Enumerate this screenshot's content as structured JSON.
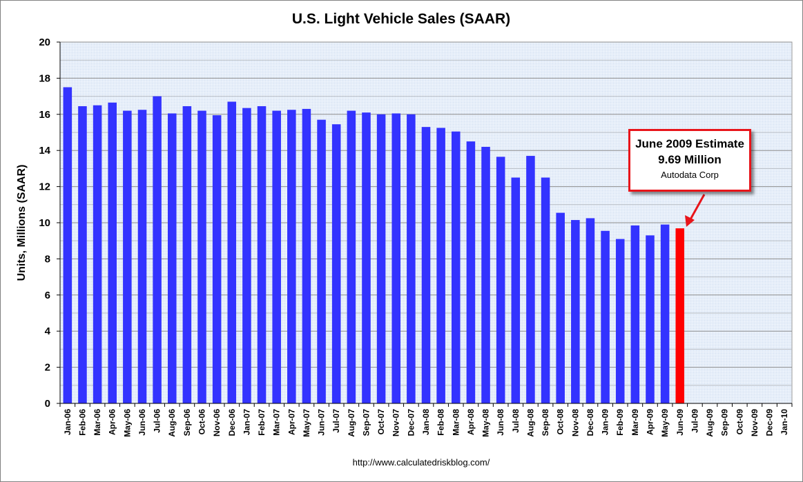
{
  "chart_data": {
    "type": "bar",
    "title": "U.S. Light Vehicle Sales (SAAR)",
    "xlabel": "",
    "ylabel": "Units, Millions (SAAR)",
    "ylim": [
      0,
      20
    ],
    "yticks": [
      0,
      2,
      4,
      6,
      8,
      10,
      12,
      14,
      16,
      18,
      20
    ],
    "grid": true,
    "categories": [
      "Jan-06",
      "Feb-06",
      "Mar-06",
      "Apr-06",
      "May-06",
      "Jun-06",
      "Jul-06",
      "Aug-06",
      "Sep-06",
      "Oct-06",
      "Nov-06",
      "Dec-06",
      "Jan-07",
      "Feb-07",
      "Mar-07",
      "Apr-07",
      "May-07",
      "Jun-07",
      "Jul-07",
      "Aug-07",
      "Sep-07",
      "Oct-07",
      "Nov-07",
      "Dec-07",
      "Jan-08",
      "Feb-08",
      "Mar-08",
      "Apr-08",
      "May-08",
      "Jun-08",
      "Jul-08",
      "Aug-08",
      "Sep-08",
      "Oct-08",
      "Nov-08",
      "Dec-08",
      "Jan-09",
      "Feb-09",
      "Mar-09",
      "Apr-09",
      "May-09",
      "Jun-09",
      "Jul-09",
      "Aug-09",
      "Sep-09",
      "Oct-09",
      "Nov-09",
      "Dec-09",
      "Jan-10"
    ],
    "values": [
      17.5,
      16.45,
      16.5,
      16.65,
      16.2,
      16.25,
      17.0,
      16.05,
      16.45,
      16.2,
      15.95,
      16.7,
      16.35,
      16.45,
      16.2,
      16.25,
      16.3,
      15.7,
      15.45,
      16.2,
      16.1,
      16.0,
      16.05,
      16.0,
      15.3,
      15.25,
      15.05,
      14.5,
      14.2,
      13.65,
      12.5,
      13.7,
      12.5,
      10.55,
      10.15,
      10.25,
      9.55,
      9.1,
      9.85,
      9.3,
      9.9,
      9.69,
      null,
      null,
      null,
      null,
      null,
      null,
      null
    ],
    "highlight_index": 41,
    "colors": {
      "bar": "#3333ff",
      "highlight": "#ff0000",
      "plot_bg": "#e8f0fa",
      "grid": "#8c8c8c"
    }
  },
  "annotation": {
    "line1": "June 2009 Estimate",
    "line2": "9.69 Million",
    "line3": "Autodata Corp",
    "border_color": "#e8141a"
  },
  "source_text": "http://www.calculatedriskblog.com/"
}
